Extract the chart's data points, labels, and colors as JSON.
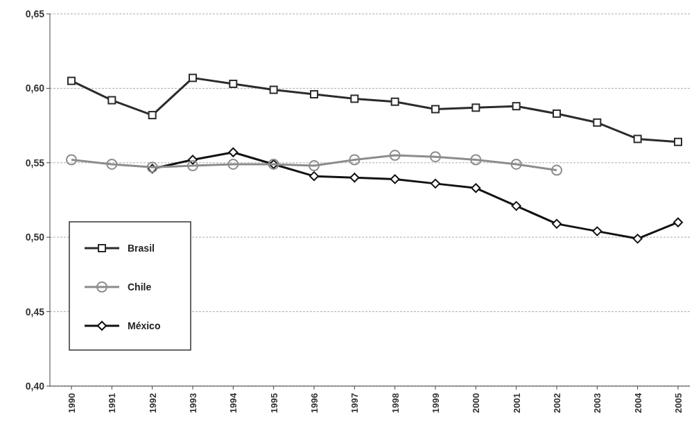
{
  "chart_data": {
    "type": "line",
    "categories": [
      "1990",
      "1991",
      "1992",
      "1993",
      "1994",
      "1995",
      "1996",
      "1997",
      "1998",
      "1999",
      "2000",
      "2001",
      "2002",
      "2003",
      "2004",
      "2005"
    ],
    "series": [
      {
        "name": "Brasil",
        "color": "#2b2b2b",
        "marker": "square",
        "values": [
          0.605,
          0.592,
          0.582,
          0.607,
          0.603,
          0.599,
          0.596,
          0.593,
          0.591,
          0.586,
          0.587,
          0.588,
          0.583,
          0.577,
          0.566,
          0.564
        ]
      },
      {
        "name": "Chile",
        "color": "#8c8c8c",
        "marker": "circle",
        "values": [
          0.552,
          0.549,
          0.547,
          0.548,
          0.549,
          0.549,
          0.548,
          0.552,
          0.555,
          0.554,
          0.552,
          0.549,
          0.545,
          null,
          null,
          null
        ]
      },
      {
        "name": "México",
        "color": "#111111",
        "marker": "diamond",
        "values": [
          null,
          null,
          0.546,
          0.552,
          0.557,
          0.549,
          0.541,
          0.54,
          0.539,
          0.536,
          0.533,
          0.521,
          0.509,
          0.504,
          0.499,
          0.51
        ]
      }
    ],
    "ylim": [
      0.4,
      0.65
    ],
    "yticks": [
      {
        "value": 0.4,
        "label": "0,40"
      },
      {
        "value": 0.45,
        "label": "0,45"
      },
      {
        "value": 0.5,
        "label": "0,50"
      },
      {
        "value": 0.55,
        "label": "0,55"
      },
      {
        "value": 0.6,
        "label": "0,60"
      },
      {
        "value": 0.65,
        "label": "0,65"
      }
    ],
    "grid": "y",
    "legend": "left",
    "line_style": "solid"
  }
}
